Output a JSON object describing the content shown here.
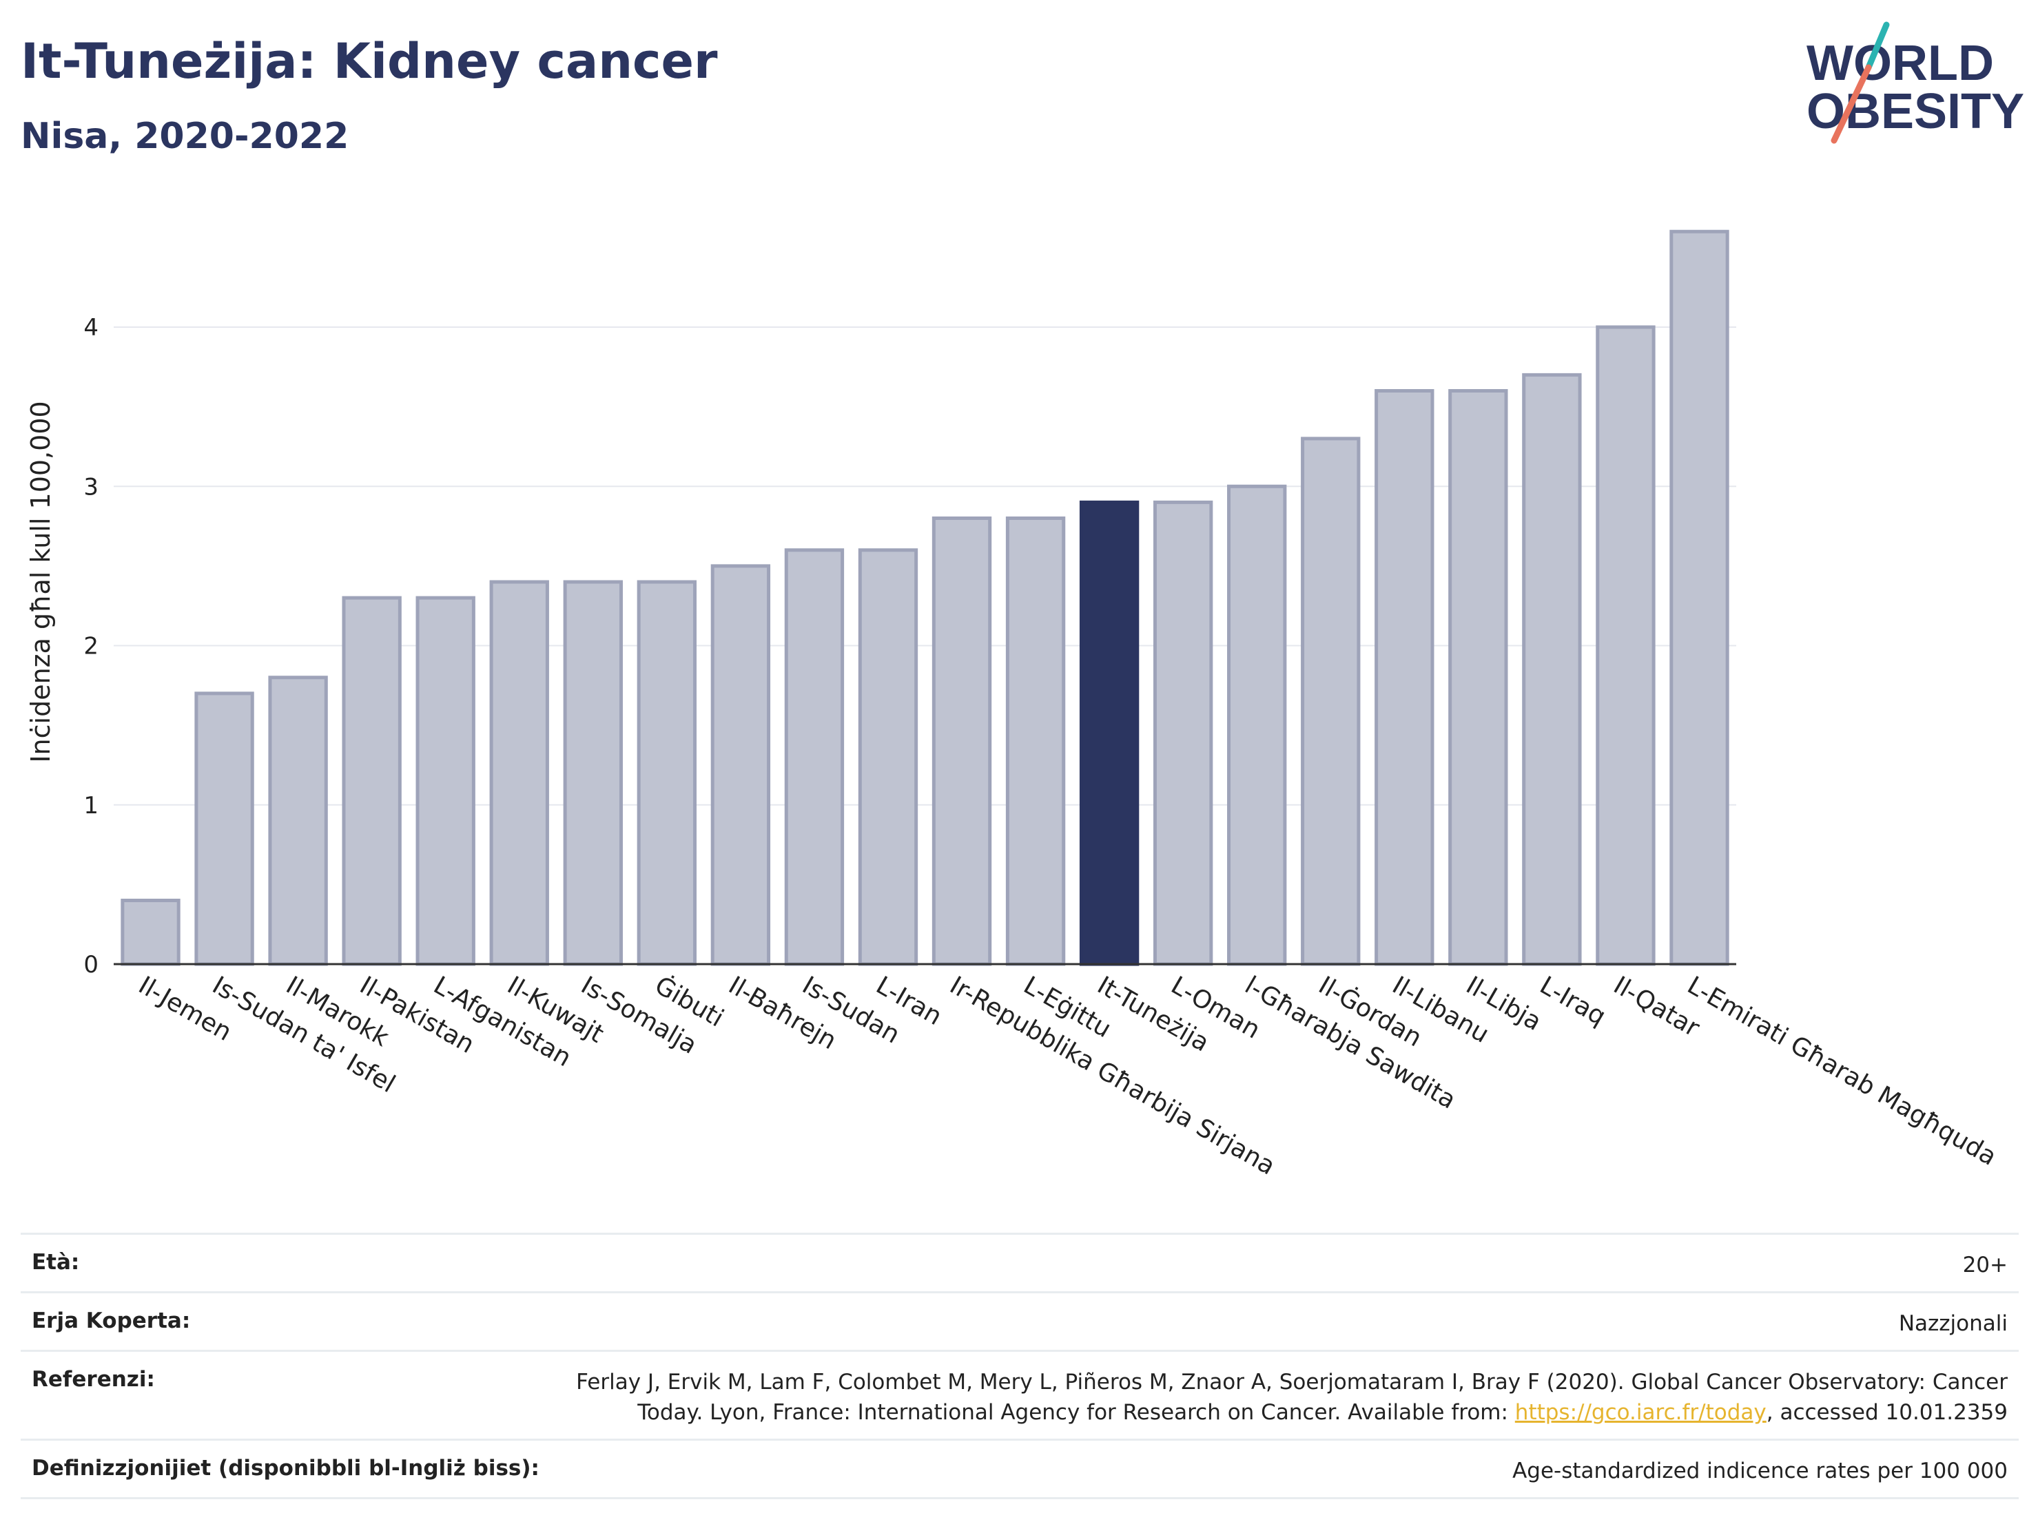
{
  "header": {
    "title": "It-Tuneżija: Kidney cancer",
    "subtitle": "Nisa, 2020-2022"
  },
  "logo": {
    "line1": "WORLD",
    "line2": "OBESITY"
  },
  "chart_data": {
    "type": "bar",
    "ylabel": "Inċidenza għal kull 100,000",
    "ylim": [
      0,
      4.8
    ],
    "yticks": [
      0,
      1,
      2,
      3,
      4
    ],
    "grid": true,
    "categories": [
      "Il-Jemen",
      "Is-Sudan ta' Isfel",
      "Il-Marokk",
      "Il-Pakistan",
      "L-Afganistan",
      "Il-Kuwajt",
      "Is-Somalja",
      "Ġibuti",
      "Il-Baħrejn",
      "Is-Sudan",
      "L-Iran",
      "Ir-Repubblika Għarbija Sirjana",
      "L-Eġittu",
      "It-Tuneżija",
      "L-Oman",
      "l-Għarabja Sawdita",
      "Il-Ġordan",
      "Il-Libanu",
      "Il-Libja",
      "L-Iraq",
      "Il-Qatar",
      "L-Emirati Għarab Magħquda"
    ],
    "values": [
      0.4,
      1.7,
      1.8,
      2.3,
      2.3,
      2.4,
      2.4,
      2.4,
      2.5,
      2.6,
      2.6,
      2.8,
      2.8,
      2.9,
      2.9,
      3.0,
      3.3,
      3.6,
      3.6,
      3.7,
      4.0,
      4.6
    ],
    "highlight": "It-Tuneżija",
    "colors": {
      "bar": "#bfc3d1",
      "bar_edge": "#9ea3b9",
      "highlight": "#2b3560",
      "grid": "#e6e8ee",
      "axis": "#333333"
    }
  },
  "info": {
    "rows": [
      {
        "label": "Età:",
        "value": "20+"
      },
      {
        "label": "Erja Koperta:",
        "value": "Nazzjonali"
      },
      {
        "label": "Referenzi:",
        "value_line1": "Ferlay J, Ervik M, Lam F, Colombet M, Mery L, Piñeros M, Znaor A, Soerjomataram I, Bray F (2020). Global Cancer Observatory: Cancer",
        "value_line2_pre": "Today. Lyon, France: International Agency for Research on Cancer. Available from: ",
        "value_link": "https://gco.iarc.fr/today",
        "value_line2_post": ", accessed 10.01.2359"
      },
      {
        "label": "Definizzjonijiet (disponibbli bl-Ingliż biss):",
        "value": "Age-standardized indicence rates per 100 000"
      }
    ]
  }
}
